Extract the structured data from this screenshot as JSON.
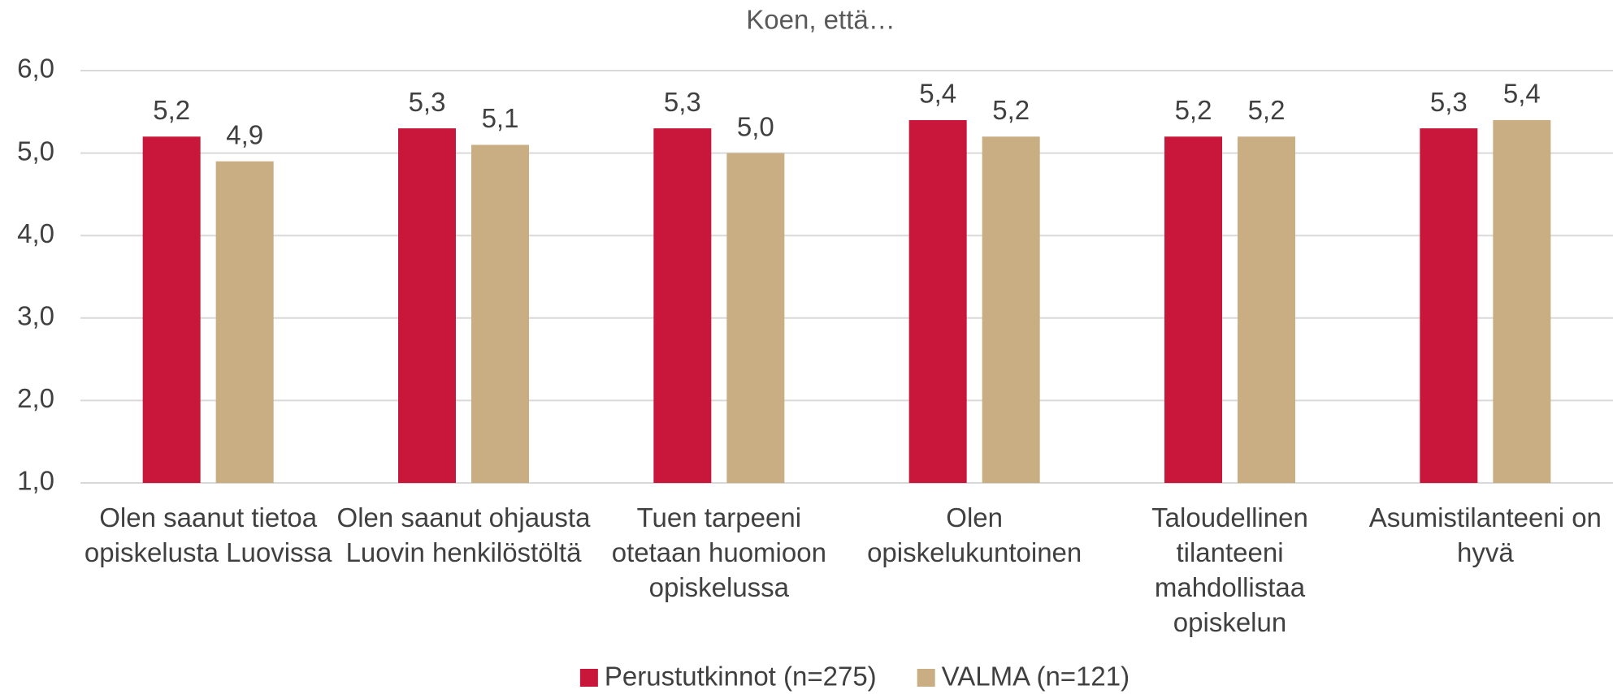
{
  "chart_data": {
    "type": "bar",
    "title": "Koen, että…",
    "categories": [
      "Olen saanut tietoa opiskelusta Luovissa",
      "Olen saanut ohjausta Luovin henkilöstöltä",
      "Tuen tarpeeni otetaan huomioon opiskelussa",
      "Olen opiskelukuntoinen",
      "Taloudellinen tilanteeni mahdollistaa opiskelun",
      "Asumistilanteeni on hyvä"
    ],
    "series": [
      {
        "name": "Perustutkinnot (n=275)",
        "color": "#c8173a",
        "values": [
          5.2,
          5.3,
          5.3,
          5.4,
          5.2,
          5.3
        ],
        "value_labels": [
          "5,2",
          "5,3",
          "5,3",
          "5,4",
          "5,2",
          "5,3"
        ]
      },
      {
        "name": "VALMA (n=121)",
        "color": "#c9ae84",
        "values": [
          4.9,
          5.1,
          5.0,
          5.2,
          5.2,
          5.4
        ],
        "value_labels": [
          "4,9",
          "5,1",
          "5,0",
          "5,2",
          "5,2",
          "5,4"
        ]
      }
    ],
    "ylim": [
      1,
      6
    ],
    "yticks": [
      {
        "value": 1,
        "label": "1,0"
      },
      {
        "value": 2,
        "label": "2,0"
      },
      {
        "value": 3,
        "label": "3,0"
      },
      {
        "value": 4,
        "label": "4,0"
      },
      {
        "value": 5,
        "label": "5,0"
      },
      {
        "value": 6,
        "label": "6,0"
      }
    ],
    "grid": true,
    "legend": "bottom"
  }
}
